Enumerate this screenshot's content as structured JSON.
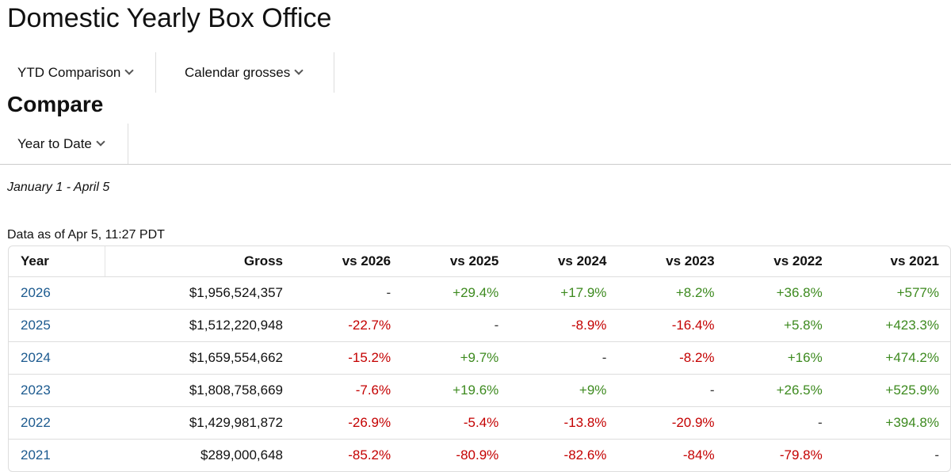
{
  "page": {
    "title": "Domestic Yearly Box Office"
  },
  "filters": {
    "view": "YTD Comparison",
    "gross_type": "Calendar grosses"
  },
  "compare": {
    "heading": "Compare",
    "period": "Year to Date"
  },
  "date_range": "January 1 - April 5",
  "data_as_of": "Data as of Apr 5, 11:27 PDT",
  "colors": {
    "positive": "#3d8a1f",
    "negative": "#c40000",
    "link": "#1c5a8f"
  },
  "table": {
    "headers": [
      "Year",
      "Gross",
      "vs 2026",
      "vs 2025",
      "vs 2024",
      "vs 2023",
      "vs 2022",
      "vs 2021"
    ],
    "rows": [
      {
        "year": "2026",
        "gross": "$1,956,524,357",
        "cells": [
          "-",
          "+29.4%",
          "+17.9%",
          "+8.2%",
          "+36.8%",
          "+577%"
        ]
      },
      {
        "year": "2025",
        "gross": "$1,512,220,948",
        "cells": [
          "-22.7%",
          "-",
          "-8.9%",
          "-16.4%",
          "+5.8%",
          "+423.3%"
        ]
      },
      {
        "year": "2024",
        "gross": "$1,659,554,662",
        "cells": [
          "-15.2%",
          "+9.7%",
          "-",
          "-8.2%",
          "+16%",
          "+474.2%"
        ]
      },
      {
        "year": "2023",
        "gross": "$1,808,758,669",
        "cells": [
          "-7.6%",
          "+19.6%",
          "+9%",
          "-",
          "+26.5%",
          "+525.9%"
        ]
      },
      {
        "year": "2022",
        "gross": "$1,429,981,872",
        "cells": [
          "-26.9%",
          "-5.4%",
          "-13.8%",
          "-20.9%",
          "-",
          "+394.8%"
        ]
      },
      {
        "year": "2021",
        "gross": "$289,000,648",
        "cells": [
          "-85.2%",
          "-80.9%",
          "-82.6%",
          "-84%",
          "-79.8%",
          "-"
        ]
      }
    ]
  }
}
